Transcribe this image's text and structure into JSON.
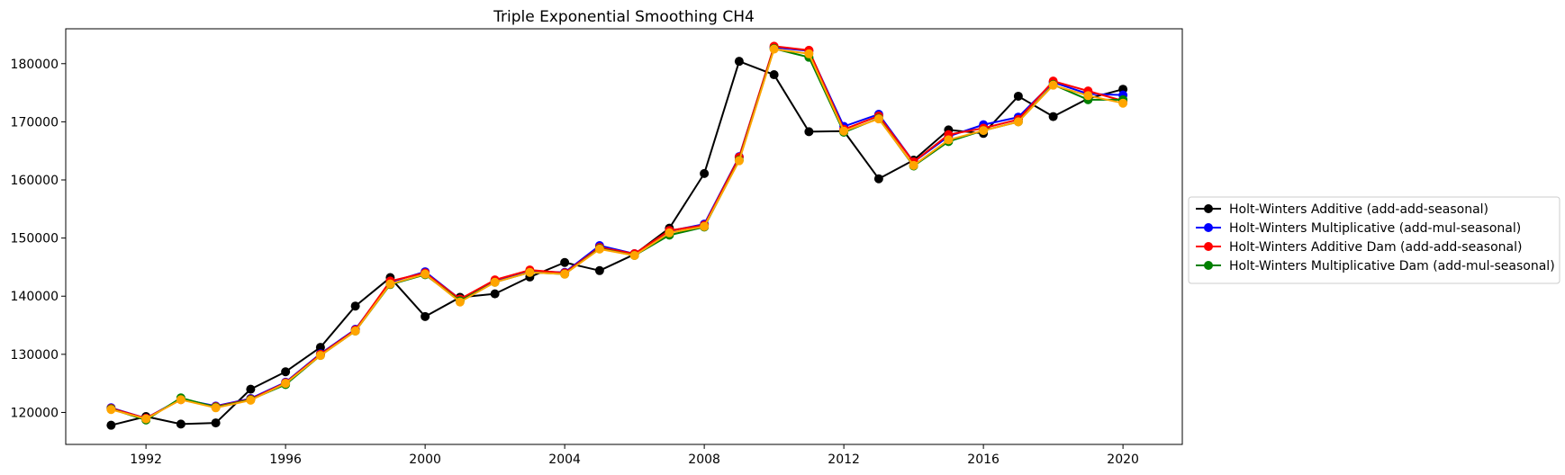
{
  "chart_data": {
    "type": "line",
    "title": "Triple Exponential Smoothing CH4",
    "xlabel": "",
    "ylabel": "",
    "xlim": [
      1989.7,
      2021.7
    ],
    "ylim": [
      114500,
      186000
    ],
    "xticks": [
      1992,
      1996,
      2000,
      2004,
      2008,
      2012,
      2016,
      2020
    ],
    "yticks": [
      120000,
      130000,
      140000,
      150000,
      160000,
      170000,
      180000
    ],
    "grid": false,
    "legend_position": "right-outside",
    "x": [
      1991,
      1992,
      1993,
      1994,
      1995,
      1996,
      1997,
      1998,
      1999,
      2000,
      2001,
      2002,
      2003,
      2004,
      2005,
      2006,
      2007,
      2008,
      2009,
      2010,
      2011,
      2012,
      2013,
      2014,
      2015,
      2016,
      2017,
      2018,
      2019,
      2020
    ],
    "series": [
      {
        "name": "Holt-Winters Additive (add-add-seasonal)",
        "color": "#000000",
        "legend": true,
        "values": [
          117800,
          119300,
          118000,
          118200,
          124000,
          127000,
          131200,
          138300,
          143200,
          136500,
          139800,
          140400,
          143300,
          145800,
          144400,
          147200,
          151700,
          161100,
          180400,
          178100,
          168300,
          168400,
          160200,
          163400,
          168600,
          168000,
          174400,
          170900,
          174000,
          175600
        ]
      },
      {
        "name": "Holt-Winters Multiplicative (add-mul-seasonal)",
        "color": "#0000ff",
        "legend": true,
        "values": [
          120800,
          119000,
          122300,
          121100,
          122400,
          125200,
          130100,
          134300,
          142400,
          144200,
          139500,
          142600,
          144300,
          144100,
          148700,
          147300,
          151200,
          152400,
          164000,
          182800,
          182200,
          169200,
          171300,
          163100,
          167500,
          169500,
          170800,
          176800,
          174800,
          174600
        ]
      },
      {
        "name": "Holt-Winters Additive Dam (add-add-seasonal)",
        "color": "#ff0000",
        "legend": true,
        "values": [
          120700,
          119000,
          122200,
          121000,
          122300,
          125100,
          130000,
          134200,
          142600,
          144000,
          139500,
          142800,
          144500,
          144000,
          148400,
          147300,
          151300,
          152200,
          163900,
          183000,
          182300,
          168700,
          171000,
          163100,
          167800,
          168900,
          170400,
          177000,
          175300,
          173600
        ]
      },
      {
        "name": "Holt-Winters Multiplicative Dam (add-mul-seasonal)",
        "color": "#008000",
        "legend": true,
        "values": [
          120600,
          118700,
          122500,
          120900,
          122200,
          124800,
          129800,
          134000,
          142000,
          143700,
          139200,
          142400,
          144100,
          143800,
          148200,
          147000,
          150500,
          151900,
          163400,
          182600,
          181100,
          168200,
          170600,
          162400,
          166600,
          168500,
          170000,
          176400,
          173800,
          173800
        ]
      },
      {
        "name": "",
        "color": "#ffa500",
        "legend": false,
        "values": [
          120500,
          118900,
          122200,
          120800,
          122100,
          125000,
          129800,
          134000,
          142100,
          143800,
          139000,
          142400,
          144100,
          143800,
          148100,
          147000,
          150900,
          152000,
          163300,
          182500,
          181700,
          168400,
          170500,
          162500,
          166900,
          168500,
          170000,
          176300,
          174500,
          173200
        ]
      }
    ]
  }
}
